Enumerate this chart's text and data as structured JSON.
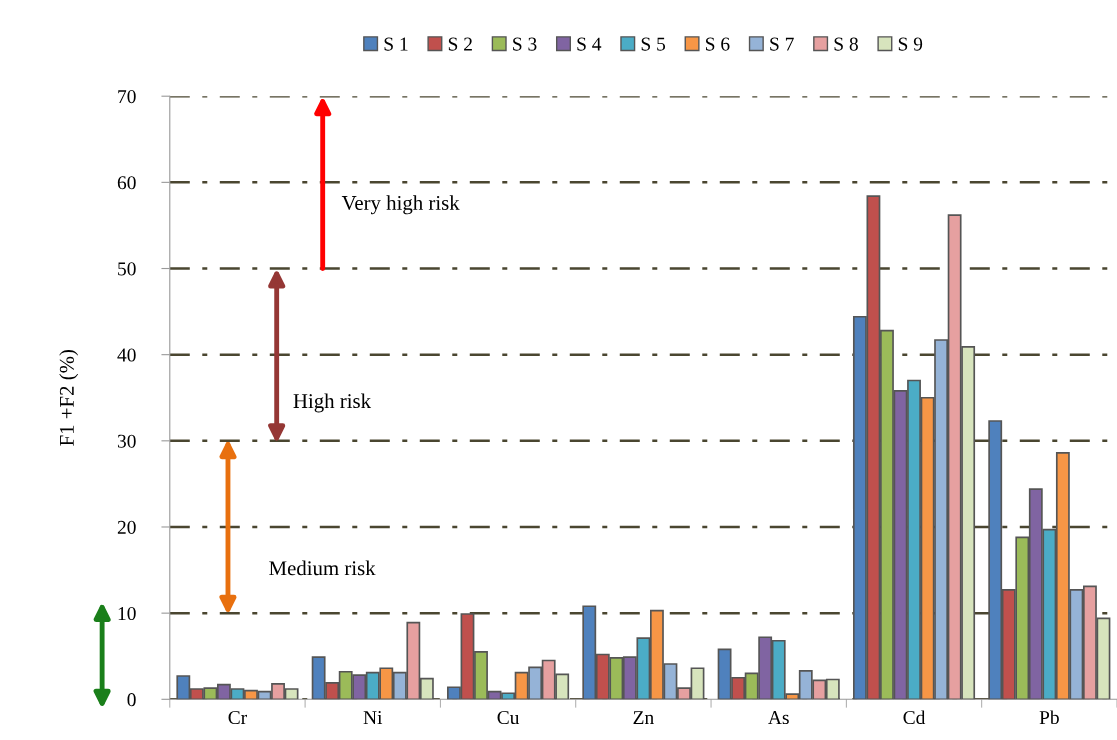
{
  "chart_data": {
    "type": "bar",
    "ylabel": "F1 +F2 (%)",
    "categories": [
      "Cr",
      "Ni",
      "Cu",
      "Zn",
      "As",
      "Cd",
      "Pb"
    ],
    "series": [
      {
        "name": "S 1",
        "color": "#4f81bd",
        "values": [
          2.7,
          4.9,
          1.4,
          10.8,
          5.8,
          44.4,
          32.3
        ]
      },
      {
        "name": "S 2",
        "color": "#c0504d",
        "values": [
          1.2,
          1.9,
          9.9,
          5.2,
          2.5,
          58.4,
          12.7
        ]
      },
      {
        "name": "S 3",
        "color": "#9bbb59",
        "values": [
          1.3,
          3.2,
          5.5,
          4.8,
          3.0,
          42.8,
          18.8
        ]
      },
      {
        "name": "S 4",
        "color": "#8064a2",
        "values": [
          1.7,
          2.8,
          0.9,
          4.9,
          7.2,
          35.8,
          24.4
        ]
      },
      {
        "name": "S 5",
        "color": "#4bacc6",
        "values": [
          1.2,
          3.1,
          0.7,
          7.1,
          6.8,
          37.0,
          19.7
        ]
      },
      {
        "name": "S 6",
        "color": "#f79646",
        "values": [
          1.0,
          3.6,
          3.1,
          10.3,
          0.6,
          35.0,
          28.6
        ]
      },
      {
        "name": "S 7",
        "color": "#95b3d7",
        "values": [
          0.9,
          3.1,
          3.7,
          4.1,
          3.3,
          41.7,
          12.7
        ]
      },
      {
        "name": "S 8",
        "color": "#e6a0a0",
        "values": [
          1.8,
          8.9,
          4.5,
          1.3,
          2.2,
          56.2,
          13.1
        ]
      },
      {
        "name": "S 9",
        "color": "#d7e4bd",
        "values": [
          1.2,
          2.4,
          2.9,
          3.6,
          2.3,
          40.9,
          9.4
        ]
      }
    ],
    "ylim": [
      0,
      70
    ],
    "yticks": [
      0,
      10,
      20,
      30,
      40,
      50,
      60,
      70
    ],
    "grid": "y",
    "legend": "top",
    "annotations": [
      "Medium risk",
      "High risk",
      "Very high risk"
    ]
  }
}
